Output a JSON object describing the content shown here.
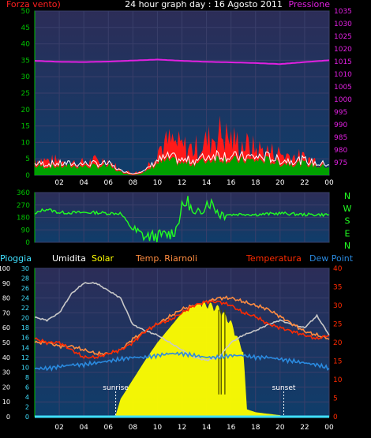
{
  "header": {
    "title": "24 hour graph day : 16 Agosto 2011",
    "left_label": "Forza vento)",
    "right_label": "Pressione"
  },
  "colors": {
    "background": "#000000",
    "plot_bg_top": "#2a2e5a",
    "plot_bg_bottom": "#123a66",
    "grid": "#3a3f6a",
    "axis_green": "#00c000",
    "pressure": "#e020e0",
    "wind_gust": "#ff1a1a",
    "wind_avg": "#00a000",
    "wind_line": "#ffffff",
    "direction": "#22ff22",
    "solar": "#ffff00",
    "humidity": "#c8c8c8",
    "temp_riarnoli": "#ff8c40",
    "temperature": "#ff2a00",
    "dew_point": "#2a8adf",
    "rain": "#40e0ff"
  },
  "x_ticks": [
    "02",
    "04",
    "06",
    "08",
    "10",
    "12",
    "14",
    "16",
    "18",
    "20",
    "22",
    "00"
  ],
  "chart_data": [
    {
      "type": "area",
      "panel": "wind-pressure",
      "title": "24 hour graph day : 16 Agosto 2011",
      "x_unit": "hour",
      "xlim": [
        0,
        24
      ],
      "y_left": {
        "label": "Forza vento)",
        "lim": [
          0,
          50
        ],
        "ticks": [
          0,
          5,
          10,
          15,
          20,
          25,
          30,
          35,
          40,
          45,
          50
        ]
      },
      "y_right": {
        "label": "Pressione",
        "lim": [
          970,
          1035
        ],
        "ticks": [
          975,
          980,
          985,
          990,
          995,
          1000,
          1005,
          1010,
          1015,
          1020,
          1025,
          1030,
          1035
        ]
      },
      "series": [
        {
          "name": "Pressione",
          "axis": "right",
          "x": [
            0,
            2,
            4,
            6,
            8,
            10,
            12,
            14,
            16,
            18,
            20,
            22,
            24
          ],
          "values": [
            1015.3,
            1014.9,
            1014.8,
            1015.0,
            1015.4,
            1015.8,
            1015.3,
            1014.9,
            1014.7,
            1014.4,
            1014.0,
            1014.8,
            1015.5
          ]
        },
        {
          "key": "gust",
          "axis": "left",
          "x": [
            0,
            1,
            2,
            3,
            4,
            5,
            6,
            7,
            8,
            9,
            10,
            11,
            12,
            13,
            14,
            15,
            16,
            17,
            18,
            19,
            20,
            21,
            22,
            23,
            24
          ],
          "values": [
            7,
            6,
            6,
            5,
            5,
            6,
            6,
            2,
            1,
            2,
            11,
            14,
            12,
            11,
            14,
            18,
            15,
            13,
            11,
            10,
            9,
            8,
            7,
            6,
            5
          ]
        },
        {
          "key": "avg",
          "axis": "left",
          "x": [
            0,
            1,
            2,
            3,
            4,
            5,
            6,
            7,
            8,
            9,
            10,
            11,
            12,
            13,
            14,
            15,
            16,
            17,
            18,
            19,
            20,
            21,
            22,
            23,
            24
          ],
          "values": [
            3,
            3,
            3,
            3,
            3,
            3,
            3,
            1,
            0,
            1,
            4,
            5,
            4,
            4,
            5,
            6,
            5,
            5,
            5,
            5,
            4,
            4,
            4,
            3,
            3
          ]
        }
      ]
    },
    {
      "type": "line",
      "panel": "wind-direction",
      "xlim": [
        0,
        24
      ],
      "ylim": [
        0,
        360
      ],
      "y_ticks": [
        0,
        90,
        180,
        270,
        360
      ],
      "compass": [
        "N",
        "W",
        "S",
        "E",
        "N"
      ],
      "series": [
        {
          "key": "direction",
          "x": [
            0,
            0.5,
            1,
            2,
            3,
            4,
            5,
            6,
            7,
            8,
            9,
            10,
            11,
            11.5,
            12,
            12.5,
            13,
            13.5,
            14,
            14.5,
            15,
            16,
            17,
            18,
            19,
            20,
            21,
            22,
            23,
            24
          ],
          "values": [
            200,
            230,
            240,
            215,
            215,
            215,
            215,
            210,
            210,
            90,
            40,
            45,
            60,
            90,
            250,
            300,
            180,
            220,
            290,
            280,
            210,
            200,
            205,
            200,
            205,
            210,
            205,
            200,
            200,
            200
          ]
        }
      ]
    },
    {
      "type": "line",
      "panel": "environment",
      "xlim": [
        0,
        24
      ],
      "legend": [
        "Pioggia",
        "Umidita",
        "Solar",
        "Temp. Riarnoli",
        "Temperatura",
        "Dew Point"
      ],
      "axes": {
        "humidity": {
          "lim": [
            0,
            100
          ],
          "ticks": [
            0,
            10,
            20,
            30,
            40,
            50,
            60,
            70,
            80,
            90,
            100
          ]
        },
        "rain": {
          "lim": [
            0,
            30
          ],
          "ticks": [
            0,
            2,
            4,
            6,
            8,
            10,
            12,
            14,
            16,
            18,
            20,
            22,
            24,
            26,
            28,
            30
          ]
        },
        "temperature": {
          "lim": [
            0,
            40
          ],
          "ticks": [
            0,
            5,
            10,
            15,
            20,
            25,
            30,
            35,
            40
          ]
        }
      },
      "annotations": [
        {
          "text": "sunrise",
          "x": 6.6
        },
        {
          "text": "sunset",
          "x": 20.3
        }
      ],
      "series": [
        {
          "name": "Umidita",
          "axis": "humidity",
          "x": [
            0,
            1,
            2,
            3,
            4,
            5,
            6,
            7,
            8,
            9,
            10,
            11,
            12,
            13,
            14,
            15,
            16,
            17,
            18,
            19,
            20,
            21,
            22,
            23,
            24
          ],
          "values": [
            67,
            65,
            70,
            83,
            90,
            90,
            85,
            80,
            62,
            58,
            55,
            50,
            45,
            40,
            38,
            40,
            50,
            55,
            58,
            62,
            65,
            62,
            60,
            68,
            55
          ]
        },
        {
          "name": "Solar",
          "axis": "humidity",
          "x": [
            0,
            6,
            6.6,
            7,
            8,
            9,
            10,
            11,
            12,
            13,
            14,
            15,
            16,
            17,
            17.3,
            18,
            20,
            20.3,
            24
          ],
          "values": [
            0,
            0,
            1,
            12,
            25,
            38,
            50,
            60,
            70,
            75,
            78,
            75,
            65,
            45,
            5,
            3,
            1,
            0,
            0
          ]
        },
        {
          "name": "Temp. Riarnoli",
          "axis": "temperature",
          "x": [
            0,
            1,
            2,
            3,
            4,
            5,
            6,
            7,
            8,
            9,
            10,
            11,
            12,
            13,
            14,
            15,
            16,
            17,
            18,
            19,
            20,
            21,
            22,
            23,
            24
          ],
          "values": [
            20,
            20,
            19,
            19,
            18,
            17,
            17,
            18,
            21,
            23,
            25,
            27,
            29,
            30,
            31,
            32,
            32,
            31,
            30,
            29,
            27,
            25,
            23,
            22,
            21
          ]
        },
        {
          "name": "Temperatura",
          "axis": "temperature",
          "x": [
            0,
            1,
            2,
            3,
            4,
            5,
            6,
            7,
            8,
            9,
            10,
            11,
            12,
            13,
            14,
            15,
            16,
            17,
            18,
            19,
            20,
            21,
            22,
            23,
            24
          ],
          "values": [
            21,
            20,
            20,
            18,
            16,
            16,
            17,
            18,
            20,
            23,
            25,
            26,
            28,
            30,
            31,
            31,
            30,
            28,
            27,
            25,
            24,
            23,
            22,
            21,
            22
          ]
        },
        {
          "name": "Dew Point",
          "axis": "temperature",
          "x": [
            0,
            1,
            2,
            3,
            4,
            5,
            6,
            7,
            8,
            9,
            10,
            11,
            12,
            13,
            14,
            15,
            16,
            17,
            18,
            19,
            20,
            21,
            22,
            23,
            24
          ],
          "values": [
            13,
            13,
            13.5,
            14,
            14,
            14.5,
            15,
            15.5,
            16,
            16,
            16.5,
            17,
            17,
            16.5,
            16,
            16,
            16.5,
            16.5,
            16,
            16,
            15.5,
            15,
            14.5,
            14,
            13
          ]
        },
        {
          "name": "Pioggia",
          "axis": "rain",
          "x": [
            0,
            24
          ],
          "values": [
            0,
            0
          ]
        }
      ]
    }
  ]
}
